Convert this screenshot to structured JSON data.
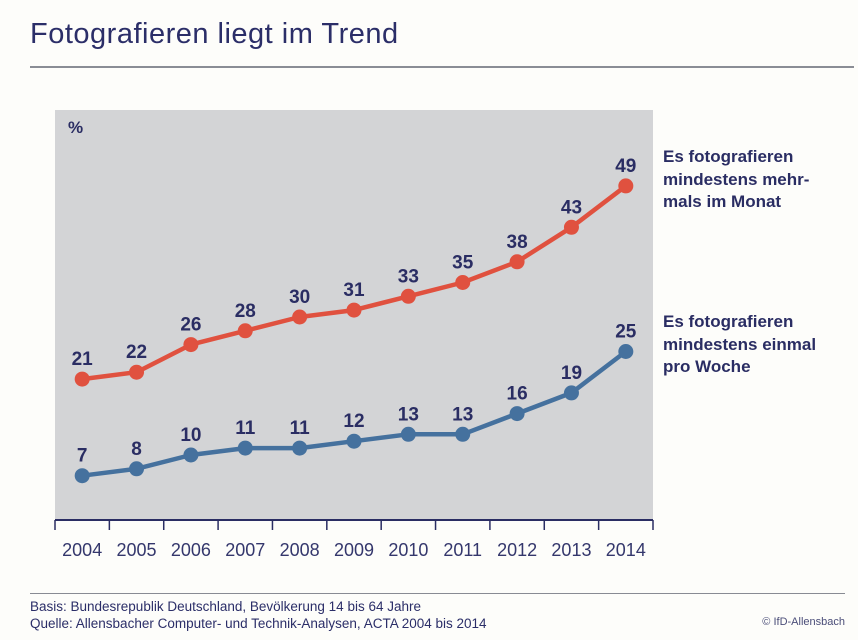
{
  "title": "Fotografieren liegt im Trend",
  "chart_data": {
    "type": "line",
    "unit_label": "%",
    "x": [
      "2004",
      "2005",
      "2006",
      "2007",
      "2008",
      "2009",
      "2010",
      "2011",
      "2012",
      "2013",
      "2014"
    ],
    "series": [
      {
        "name": "Es fotografieren mindestens mehrmals im Monat",
        "values": [
          21,
          22,
          26,
          28,
          30,
          31,
          33,
          35,
          38,
          43,
          49
        ],
        "color": "#e0513f"
      },
      {
        "name": "Es fotografieren mindestens einmal pro Woche",
        "values": [
          7,
          8,
          10,
          11,
          11,
          12,
          13,
          13,
          16,
          19,
          25
        ],
        "color": "#45719e"
      }
    ],
    "ylim": [
      0,
      60
    ],
    "grid": false,
    "data_labels": true,
    "legend_position": "right",
    "axis_color": "#2a2d63"
  },
  "legend": {
    "monthly": {
      "lines": [
        "Es fotografieren",
        "mindestens mehr-",
        "mals im Monat"
      ]
    },
    "weekly": {
      "lines": [
        "Es fotografieren",
        "mindestens einmal",
        "pro Woche"
      ]
    }
  },
  "footer": {
    "basis": "Basis: Bundesrepublik Deutschland, Bevölkerung 14 bis 64 Jahre",
    "quelle": "Quelle: Allensbacher Computer- und Technik-Analysen, ACTA 2004 bis 2014",
    "copyright": "© IfD-Allensbach"
  }
}
